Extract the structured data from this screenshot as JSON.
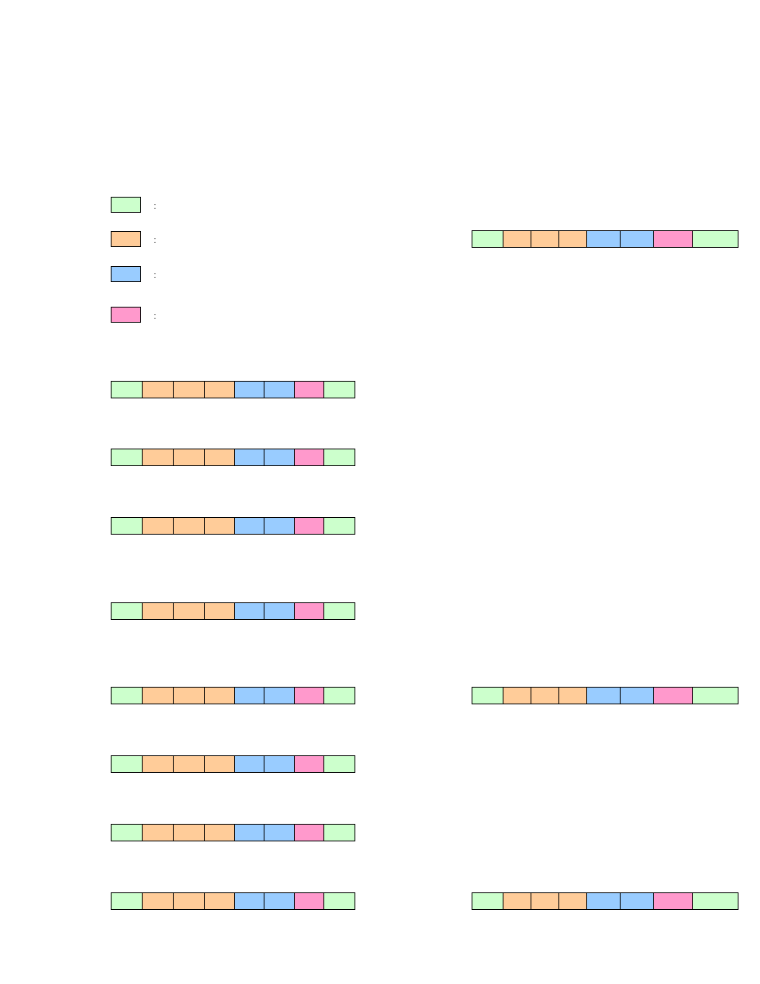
{
  "colors": {
    "green": "#ccffcc",
    "orange": "#ffcc99",
    "blue": "#99ccff",
    "pink": "#ff99cc"
  },
  "legend": {
    "items": [
      {
        "color": "green",
        "separator": ":"
      },
      {
        "color": "orange",
        "separator": ":"
      },
      {
        "color": "blue",
        "separator": ":"
      },
      {
        "color": "pink",
        "separator": ":"
      }
    ]
  },
  "strip_pattern": [
    "green",
    "orange",
    "orange",
    "orange",
    "blue",
    "blue",
    "pink",
    "green"
  ],
  "left_strips_count": 8,
  "right_strips_count": 3
}
